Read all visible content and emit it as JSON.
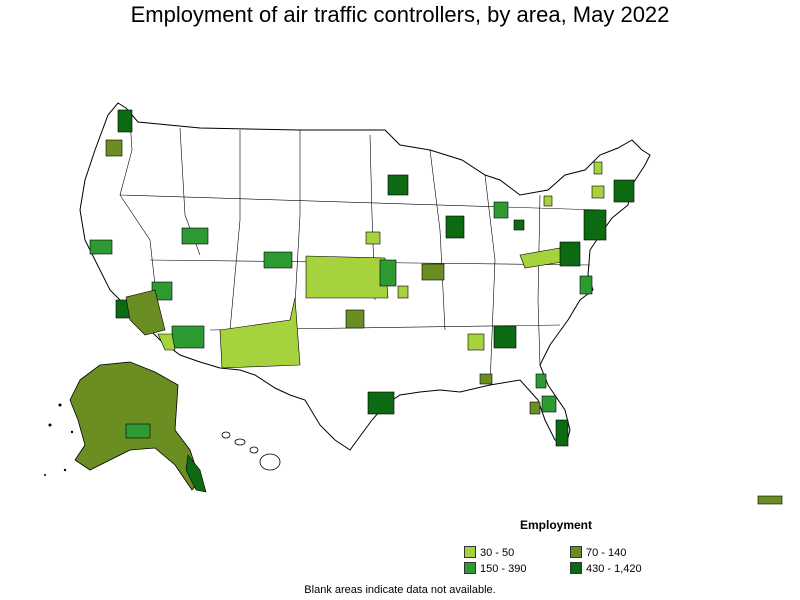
{
  "title": "Employment of air traffic controllers, by area, May 2022",
  "legend": {
    "title": "Employment",
    "items": [
      {
        "label": "30 - 50",
        "color": "#a5d23d"
      },
      {
        "label": "70 - 140",
        "color": "#6b8e23"
      },
      {
        "label": "150 - 390",
        "color": "#2e9a34"
      },
      {
        "label": "430 - 1,420",
        "color": "#0b6a12"
      }
    ]
  },
  "footnote": "Blank areas indicate data not available.",
  "colors": {
    "outline": "#000000",
    "land": "#ffffff",
    "class1": "#a5d23d",
    "class2": "#6b8e23",
    "class3": "#2e9a34",
    "class4": "#0b6a12"
  }
}
